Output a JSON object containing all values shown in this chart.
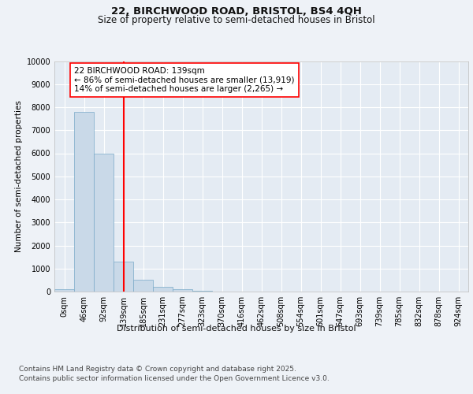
{
  "title_line1": "22, BIRCHWOOD ROAD, BRISTOL, BS4 4QH",
  "title_line2": "Size of property relative to semi-detached houses in Bristol",
  "xlabel": "Distribution of semi-detached houses by size in Bristol",
  "ylabel": "Number of semi-detached properties",
  "bin_labels": [
    "0sqm",
    "46sqm",
    "92sqm",
    "139sqm",
    "185sqm",
    "231sqm",
    "277sqm",
    "323sqm",
    "370sqm",
    "416sqm",
    "462sqm",
    "508sqm",
    "554sqm",
    "601sqm",
    "647sqm",
    "693sqm",
    "739sqm",
    "785sqm",
    "832sqm",
    "878sqm",
    "924sqm"
  ],
  "bar_heights": [
    100,
    7800,
    6000,
    1300,
    500,
    200,
    100,
    50,
    10,
    2,
    1,
    0,
    0,
    0,
    0,
    0,
    0,
    0,
    0,
    0,
    0
  ],
  "bar_color": "#c9d9e8",
  "bar_edge_color": "#7aaac8",
  "vline_x": 3,
  "vline_color": "red",
  "annotation_text": "22 BIRCHWOOD ROAD: 139sqm\n← 86% of semi-detached houses are smaller (13,919)\n14% of semi-detached houses are larger (2,265) →",
  "annotation_box_color": "white",
  "annotation_box_edge_color": "red",
  "ylim": [
    0,
    10000
  ],
  "yticks": [
    0,
    1000,
    2000,
    3000,
    4000,
    5000,
    6000,
    7000,
    8000,
    9000,
    10000
  ],
  "background_color": "#eef2f7",
  "plot_bg_color": "#e4ebf3",
  "grid_color": "white",
  "footnote_line1": "Contains HM Land Registry data © Crown copyright and database right 2025.",
  "footnote_line2": "Contains public sector information licensed under the Open Government Licence v3.0.",
  "title_fontsize": 9.5,
  "subtitle_fontsize": 8.5,
  "annotation_fontsize": 7.5,
  "tick_fontsize": 7,
  "ylabel_fontsize": 7.5,
  "xlabel_fontsize": 8,
  "footnote_fontsize": 6.5
}
